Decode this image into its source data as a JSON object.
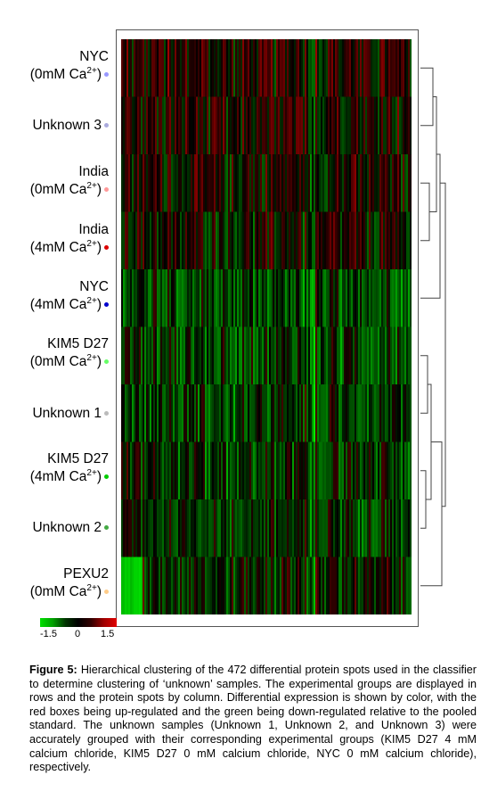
{
  "figure": {
    "rows": [
      {
        "line1": "NYC",
        "line2_pre": "(0mM Ca",
        "line2_sup": "2+",
        "line2_post": ")",
        "dot": "#9999ff",
        "tone": 0.15
      },
      {
        "line1": "Unknown 3",
        "dot": "#aaaadd",
        "tone": 0.1
      },
      {
        "line1": "India",
        "line2_pre": "(0mM Ca",
        "line2_sup": "2+",
        "line2_post": ")",
        "dot": "#ff9999",
        "tone": 0.05
      },
      {
        "line1": "India",
        "line2_pre": "(4mM Ca",
        "line2_sup": "2+",
        "line2_post": ")",
        "dot": "#dd0000",
        "tone": 0.0
      },
      {
        "line1": "NYC",
        "line2_pre": "(4mM Ca",
        "line2_sup": "2+",
        "line2_post": ")",
        "dot": "#0000cc",
        "tone": -0.35
      },
      {
        "line1": "KIM5 D27",
        "line2_pre": "(0mM Ca",
        "line2_sup": "2+",
        "line2_post": ")",
        "dot": "#66ff66",
        "tone": -0.3
      },
      {
        "line1": "Unknown 1",
        "dot": "#bbbbbb",
        "tone": -0.3
      },
      {
        "line1": "KIM5 D27",
        "line2_pre": "(4mM Ca",
        "line2_sup": "2+",
        "line2_post": ")",
        "dot": "#00cc00",
        "tone": -0.25
      },
      {
        "line1": "Unknown 2",
        "dot": "#44aa44",
        "tone": -0.2
      },
      {
        "line1": "PEXU2",
        "line2_pre": "(0mM Ca",
        "line2_sup": "2+",
        "line2_post": ")",
        "dot": "#ffcc88",
        "tone": -0.1
      }
    ],
    "scale": {
      "min_label": "-1.5",
      "mid_label": "0",
      "max_label": "1.5"
    },
    "colors": {
      "up": "#ff0000",
      "down": "#00ff00",
      "neutral": "#000000"
    }
  },
  "caption": {
    "label": "Figure 5:",
    "text": " Hierarchical clustering of the 472 differential protein spots used in the classifier to determine clustering of ‘unknown’ samples. The experimental groups are displayed in rows and the protein spots by column. Differential expression is shown by color, with the red boxes being up-regulated and the green being down-regulated relative to the pooled standard. The unknown samples (Unknown 1, Unknown 2, and Unknown 3) were accurately grouped with their corresponding experimental groups (KIM5 D27 4 mM calcium chloride, KIM5 D27 0 mM calcium chloride, NYC 0 mM calcium chloride), respectively."
  }
}
